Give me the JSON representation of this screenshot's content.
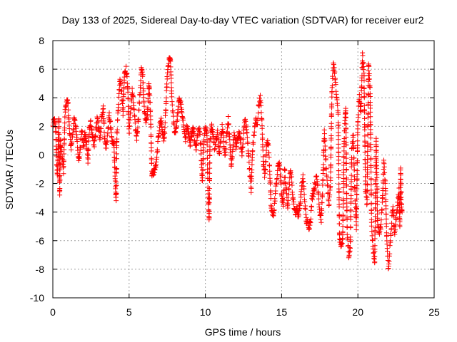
{
  "chart_data": {
    "type": "scatter",
    "title": "Day 133 of 2025, Sidereal Day-to-day VTEC variation (SDTVAR) for receiver eur2",
    "xlabel": "GPS time / hours",
    "ylabel": "SDTVAR / TECUs",
    "xlim": [
      0,
      25
    ],
    "ylim": [
      -10,
      8
    ],
    "xticks": [
      "0",
      "5",
      "10",
      "15",
      "20",
      "25"
    ],
    "yticks": [
      "-10",
      "-8",
      "-6",
      "-4",
      "-2",
      "0",
      "2",
      "4",
      "6",
      "8"
    ],
    "grid": true,
    "marker": "+",
    "color": "#ff0000",
    "series": [
      {
        "name": "SDTVAR",
        "trace": [
          [
            0.0,
            2.0
          ],
          [
            0.1,
            2.5
          ],
          [
            0.2,
            1.5
          ],
          [
            0.25,
            -0.5
          ],
          [
            0.3,
            -1.5
          ],
          [
            0.35,
            0.5
          ],
          [
            0.4,
            2.6
          ],
          [
            0.45,
            -2.7
          ],
          [
            0.5,
            1.0
          ],
          [
            0.6,
            0.0
          ],
          [
            0.7,
            -1.2
          ],
          [
            0.8,
            3.0
          ],
          [
            0.9,
            3.8
          ],
          [
            1.0,
            3.5
          ],
          [
            1.1,
            1.5
          ],
          [
            1.2,
            0.5
          ],
          [
            1.3,
            1.5
          ],
          [
            1.4,
            2.5
          ],
          [
            1.5,
            2.0
          ],
          [
            1.6,
            1.0
          ],
          [
            1.7,
            -0.5
          ],
          [
            1.8,
            0.5
          ],
          [
            1.9,
            1.8
          ],
          [
            2.0,
            0.5
          ],
          [
            2.1,
            1.5
          ],
          [
            2.2,
            1.0
          ],
          [
            2.3,
            -0.5
          ],
          [
            2.4,
            2.0
          ],
          [
            2.5,
            2.2
          ],
          [
            2.6,
            1.2
          ],
          [
            2.7,
            0.5
          ],
          [
            2.8,
            1.5
          ],
          [
            2.9,
            2.5
          ],
          [
            3.0,
            2.0
          ],
          [
            3.1,
            1.0
          ],
          [
            3.2,
            2.5
          ],
          [
            3.3,
            3.5
          ],
          [
            3.4,
            1.0
          ],
          [
            3.5,
            0.5
          ],
          [
            3.6,
            1.5
          ],
          [
            3.7,
            2.8
          ],
          [
            3.8,
            1.8
          ],
          [
            3.9,
            0.8
          ],
          [
            4.0,
            1.0
          ],
          [
            4.1,
            -2.3
          ],
          [
            4.15,
            -3.2
          ],
          [
            4.2,
            1.5
          ],
          [
            4.3,
            3.5
          ],
          [
            4.4,
            5.5
          ],
          [
            4.5,
            4.5
          ],
          [
            4.6,
            3.0
          ],
          [
            4.7,
            5.8
          ],
          [
            4.8,
            6.0
          ],
          [
            4.9,
            5.0
          ],
          [
            5.0,
            1.5
          ],
          [
            5.1,
            3.0
          ],
          [
            5.2,
            4.5
          ],
          [
            5.3,
            3.5
          ],
          [
            5.4,
            2.0
          ],
          [
            5.5,
            1.2
          ],
          [
            5.6,
            2.5
          ],
          [
            5.7,
            4.0
          ],
          [
            5.8,
            6.0
          ],
          [
            5.9,
            5.5
          ],
          [
            6.0,
            3.0
          ],
          [
            6.1,
            2.5
          ],
          [
            6.2,
            2.8
          ],
          [
            6.3,
            5.2
          ],
          [
            6.4,
            3.0
          ],
          [
            6.5,
            -1.5
          ],
          [
            6.6,
            -1.2
          ],
          [
            6.7,
            -1.0
          ],
          [
            6.8,
            -0.5
          ],
          [
            6.9,
            1.0
          ],
          [
            7.0,
            2.0
          ],
          [
            7.1,
            2.5
          ],
          [
            7.2,
            1.5
          ],
          [
            7.3,
            1.0
          ],
          [
            7.4,
            3.0
          ],
          [
            7.5,
            5.5
          ],
          [
            7.6,
            6.5
          ],
          [
            7.7,
            6.8
          ],
          [
            7.8,
            4.0
          ],
          [
            7.9,
            2.5
          ],
          [
            8.0,
            1.5
          ],
          [
            8.1,
            2.0
          ],
          [
            8.2,
            3.0
          ],
          [
            8.3,
            4.0
          ],
          [
            8.4,
            3.5
          ],
          [
            8.5,
            2.5
          ],
          [
            8.6,
            2.0
          ],
          [
            8.7,
            1.0
          ],
          [
            8.8,
            2.0
          ],
          [
            8.9,
            1.5
          ],
          [
            9.0,
            0.5
          ],
          [
            9.1,
            1.5
          ],
          [
            9.2,
            2.0
          ],
          [
            9.3,
            1.0
          ],
          [
            9.4,
            0.5
          ],
          [
            9.5,
            1.5
          ],
          [
            9.6,
            2.0
          ],
          [
            9.7,
            0.5
          ],
          [
            9.8,
            -1.8
          ],
          [
            9.9,
            1.0
          ],
          [
            10.0,
            2.0
          ],
          [
            10.1,
            1.5
          ],
          [
            10.2,
            -3.5
          ],
          [
            10.25,
            -4.5
          ],
          [
            10.3,
            1.0
          ],
          [
            10.4,
            2.0
          ],
          [
            10.5,
            1.5
          ],
          [
            10.6,
            0.5
          ],
          [
            10.7,
            1.0
          ],
          [
            10.8,
            1.5
          ],
          [
            10.9,
            0.0
          ],
          [
            11.0,
            1.0
          ],
          [
            11.1,
            2.0
          ],
          [
            11.2,
            1.0
          ],
          [
            11.3,
            0.0
          ],
          [
            11.4,
            1.5
          ],
          [
            11.5,
            2.5
          ],
          [
            11.6,
            1.0
          ],
          [
            11.7,
            -1.0
          ],
          [
            11.8,
            0.5
          ],
          [
            11.9,
            1.5
          ],
          [
            12.0,
            0.5
          ],
          [
            12.1,
            1.0
          ],
          [
            12.2,
            1.5
          ],
          [
            12.3,
            1.0
          ],
          [
            12.4,
            0.0
          ],
          [
            12.5,
            1.5
          ],
          [
            12.6,
            2.5
          ],
          [
            12.7,
            1.8
          ],
          [
            12.8,
            0.5
          ],
          [
            12.9,
            -1.0
          ],
          [
            13.0,
            -2.5
          ],
          [
            13.1,
            0.5
          ],
          [
            13.2,
            1.5
          ],
          [
            13.3,
            2.5
          ],
          [
            13.4,
            2.0
          ],
          [
            13.5,
            3.5
          ],
          [
            13.6,
            4.0
          ],
          [
            13.7,
            2.5
          ],
          [
            13.8,
            -0.5
          ],
          [
            13.9,
            -1.5
          ],
          [
            14.0,
            0.5
          ],
          [
            14.1,
            1.0
          ],
          [
            14.2,
            -0.5
          ],
          [
            14.3,
            -3.5
          ],
          [
            14.4,
            -4.2
          ],
          [
            14.5,
            -4.0
          ],
          [
            14.6,
            -2.5
          ],
          [
            14.7,
            -1.5
          ],
          [
            14.8,
            -0.5
          ],
          [
            14.9,
            -1.0
          ],
          [
            15.0,
            -3.0
          ],
          [
            15.1,
            -3.5
          ],
          [
            15.2,
            -1.0
          ],
          [
            15.3,
            -2.5
          ],
          [
            15.4,
            -3.5
          ],
          [
            15.5,
            -2.0
          ],
          [
            15.6,
            -1.0
          ],
          [
            15.7,
            -2.5
          ],
          [
            15.8,
            -3.5
          ],
          [
            15.9,
            -4.0
          ],
          [
            16.0,
            -3.8
          ],
          [
            16.1,
            -4.2
          ],
          [
            16.2,
            -3.5
          ],
          [
            16.3,
            -2.5
          ],
          [
            16.4,
            -1.5
          ],
          [
            16.5,
            -3.0
          ],
          [
            16.6,
            -4.5
          ],
          [
            16.7,
            -4.8
          ],
          [
            16.8,
            -5.0
          ],
          [
            16.9,
            -4.5
          ],
          [
            17.0,
            -3.0
          ],
          [
            17.1,
            -2.5
          ],
          [
            17.2,
            -2.0
          ],
          [
            17.3,
            -1.5
          ],
          [
            17.4,
            -2.5
          ],
          [
            17.5,
            -4.0
          ],
          [
            17.6,
            -4.5
          ],
          [
            17.7,
            -2.0
          ],
          [
            17.8,
            1.5
          ],
          [
            17.9,
            -0.5
          ],
          [
            18.0,
            -2.0
          ],
          [
            18.1,
            -3.5
          ],
          [
            18.2,
            -2.0
          ],
          [
            18.3,
            4.5
          ],
          [
            18.4,
            6.5
          ],
          [
            18.5,
            5.5
          ],
          [
            18.6,
            4.0
          ],
          [
            18.7,
            3.0
          ],
          [
            18.8,
            -6.0
          ],
          [
            18.9,
            -6.2
          ],
          [
            19.0,
            -6.0
          ],
          [
            19.1,
            1.0
          ],
          [
            19.2,
            3.5
          ],
          [
            19.3,
            -5.5
          ],
          [
            19.4,
            -7.0
          ],
          [
            19.5,
            -6.5
          ],
          [
            19.6,
            0.5
          ],
          [
            19.7,
            1.5
          ],
          [
            19.8,
            -2.5
          ],
          [
            19.9,
            -5.0
          ],
          [
            20.0,
            2.5
          ],
          [
            20.1,
            4.0
          ],
          [
            20.2,
            3.0
          ],
          [
            20.3,
            7.0
          ],
          [
            20.4,
            5.8
          ],
          [
            20.5,
            -2.5
          ],
          [
            20.6,
            -3.5
          ],
          [
            20.7,
            6.5
          ],
          [
            20.8,
            4.5
          ],
          [
            20.9,
            -5.0
          ],
          [
            21.0,
            -6.5
          ],
          [
            21.1,
            -7.5
          ],
          [
            21.2,
            1.0
          ],
          [
            21.3,
            -5.0
          ],
          [
            21.4,
            -5.5
          ],
          [
            21.5,
            -5.0
          ],
          [
            21.6,
            -3.5
          ],
          [
            21.7,
            -0.5
          ],
          [
            21.8,
            -2.0
          ],
          [
            21.9,
            -6.0
          ],
          [
            22.0,
            -8.0
          ],
          [
            22.1,
            -6.5
          ],
          [
            22.2,
            -5.0
          ],
          [
            22.3,
            -3.5
          ],
          [
            22.4,
            -5.5
          ],
          [
            22.5,
            -4.5
          ],
          [
            22.6,
            -3.5
          ],
          [
            22.7,
            -2.5
          ],
          [
            22.75,
            -5.0
          ],
          [
            22.8,
            -1.0
          ],
          [
            22.85,
            -3.5
          ],
          [
            22.9,
            -4.0
          ]
        ]
      }
    ]
  }
}
